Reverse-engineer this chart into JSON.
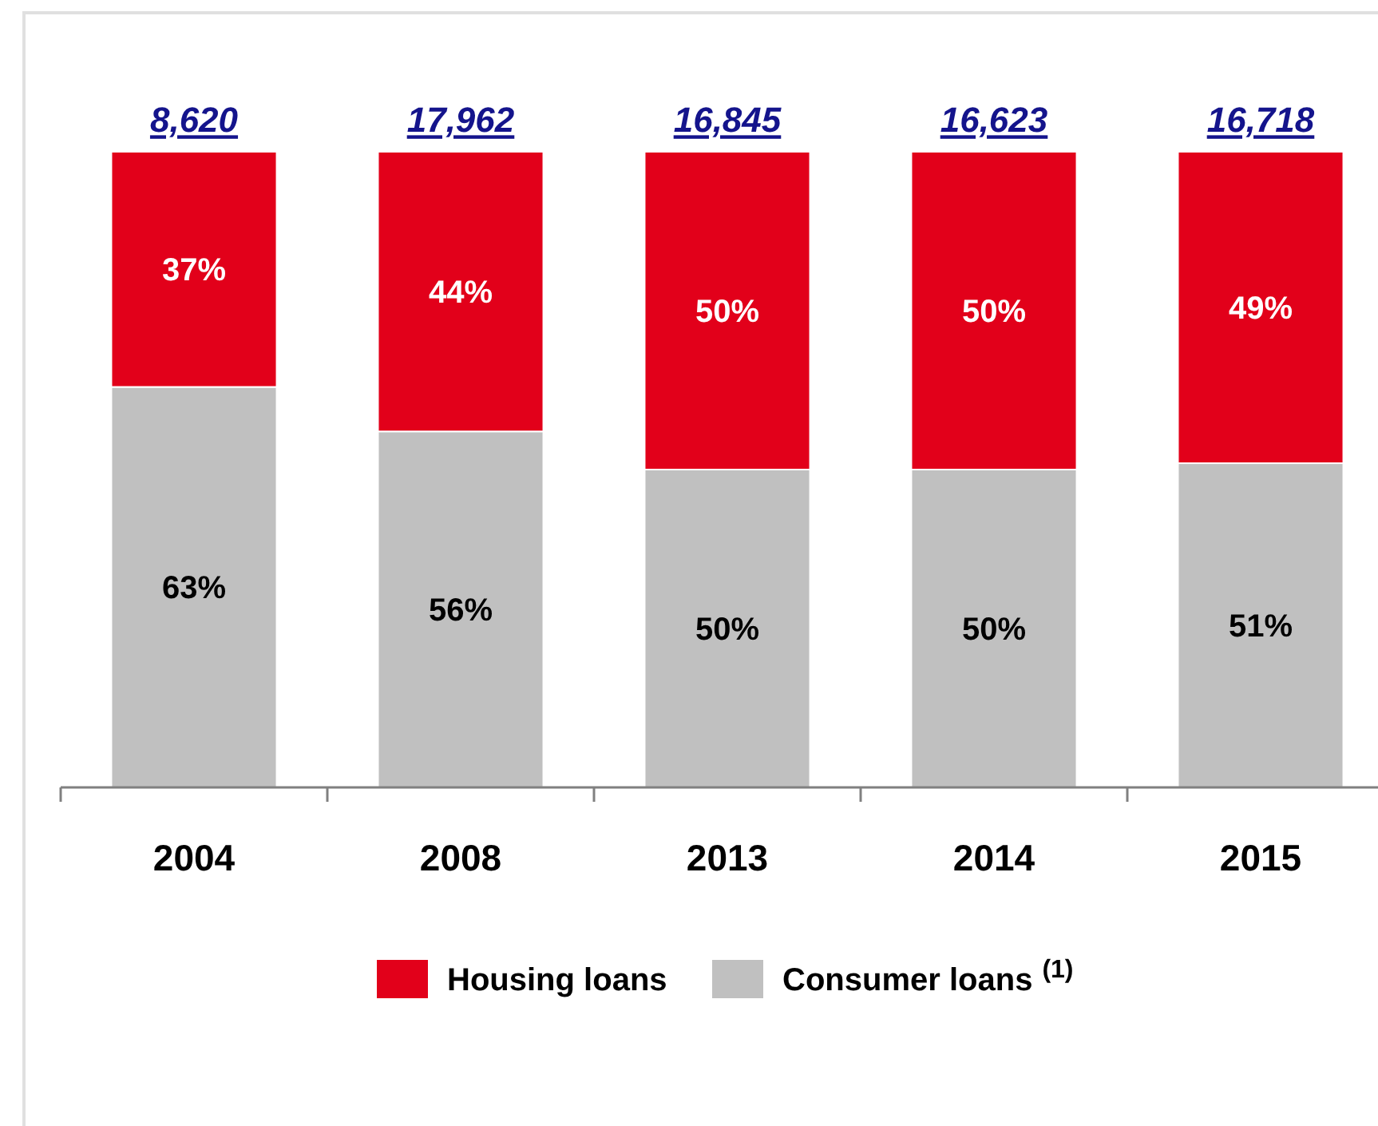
{
  "chart_data": {
    "type": "bar",
    "stacked": true,
    "legend": "bottom",
    "categories": [
      "2004",
      "2008",
      "2013",
      "2014",
      "2015"
    ],
    "series": [
      {
        "name": "Consumer loans$^{(1)}$",
        "color": "#c0c0c0",
        "values": [
          63,
          56,
          50,
          50,
          51
        ],
        "value_labels": [
          "63%",
          "56%",
          "50%",
          "50%",
          "51%"
        ]
      },
      {
        "name": "Housing loans",
        "color": "#e2001a",
        "values": [
          37,
          44,
          50,
          50,
          49
        ],
        "value_labels": [
          "37%",
          "44%",
          "50%",
          "50%",
          "49%"
        ]
      }
    ],
    "annotations": [
      {
        "text": "8,620",
        "x": "2004",
        "y": 100
      },
      {
        "text": "17,962",
        "x": "2008",
        "y": 100
      },
      {
        "text": "16,845",
        "x": "2013",
        "y": 100
      },
      {
        "text": "16,623",
        "x": "2014",
        "y": 100
      },
      {
        "text": "16,718",
        "x": "2015",
        "y": 100
      }
    ]
  }
}
